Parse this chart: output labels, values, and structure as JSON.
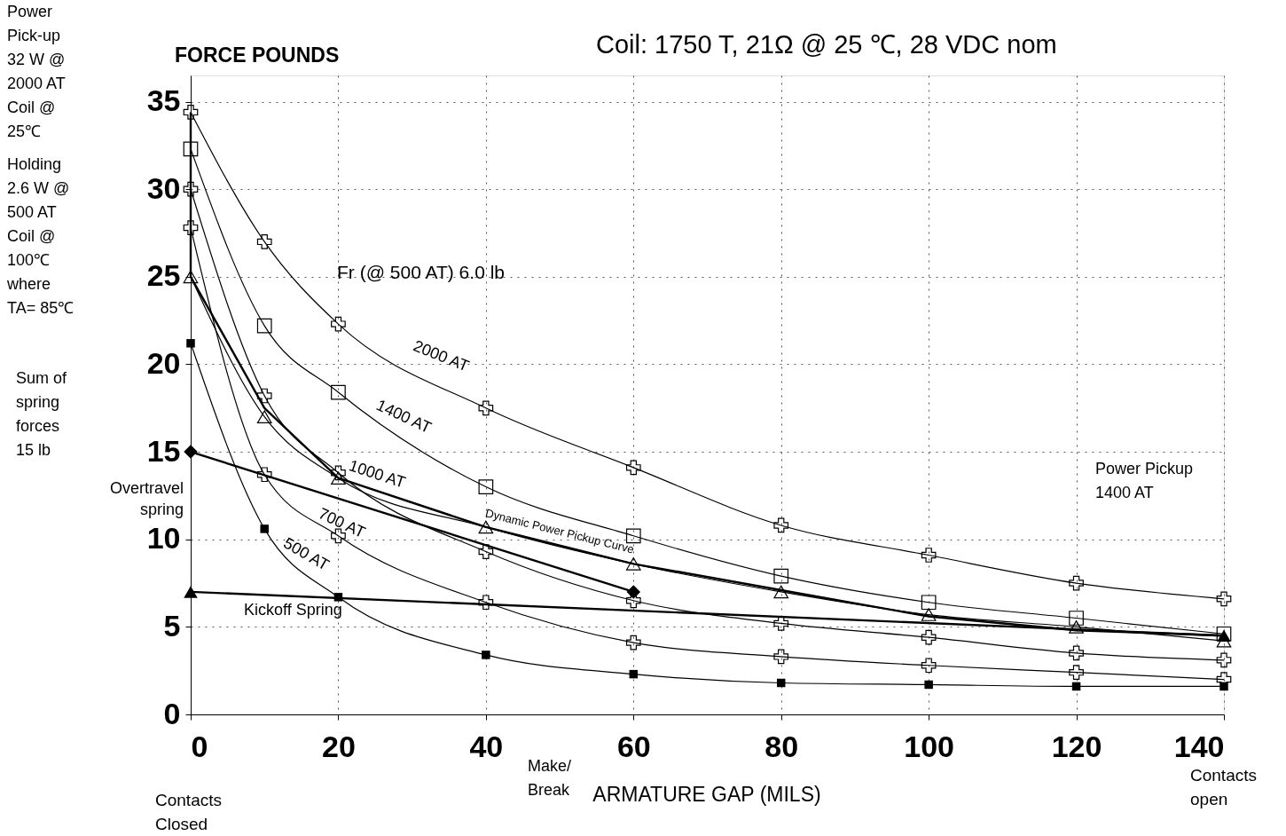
{
  "chart_data": {
    "type": "line",
    "title": "Coil:  1750   T, 21Ω  @ 25 ℃, 28 VDC nom",
    "xlabel": "ARMATURE GAP (MILS)",
    "ylabel": "FORCE POUNDS",
    "xlim": [
      0,
      140
    ],
    "ylim": [
      0,
      36.5
    ],
    "xticks": [
      0,
      20,
      40,
      60,
      80,
      100,
      120,
      140
    ],
    "yticks": [
      0,
      5,
      10,
      15,
      20,
      25,
      30,
      35
    ],
    "grid": true,
    "series": [
      {
        "name": "2000 AT",
        "color": "#000000",
        "marker": "cross",
        "x": [
          0,
          10,
          20,
          40,
          60,
          80,
          100,
          120,
          140
        ],
        "values": [
          34.4,
          27.0,
          22.3,
          17.5,
          14.1,
          10.8,
          9.1,
          7.5,
          6.6
        ]
      },
      {
        "name": "1400 AT",
        "color": "#000000",
        "marker": "square",
        "x": [
          0,
          10,
          20,
          40,
          60,
          80,
          100,
          120,
          140
        ],
        "values": [
          32.3,
          22.2,
          18.4,
          13.0,
          10.2,
          7.9,
          6.4,
          5.5,
          4.6
        ]
      },
      {
        "name": "1000 AT",
        "color": "#000000",
        "marker": "triangle",
        "x": [
          0,
          10,
          20,
          40,
          60,
          80,
          100,
          120,
          140
        ],
        "values": [
          25.0,
          17.0,
          13.5,
          10.7,
          8.6,
          7.0,
          5.7,
          5.0,
          4.2
        ]
      },
      {
        "color": "#000000",
        "marker": "cross",
        "x": [
          0,
          10,
          20,
          40,
          60,
          80,
          100,
          120,
          140
        ],
        "values": [
          30.0,
          18.2,
          13.8,
          9.3,
          6.5,
          5.2,
          4.4,
          3.5,
          3.1
        ]
      },
      {
        "name": "700 AT",
        "color": "#000000",
        "marker": "cross",
        "x": [
          0,
          10,
          20,
          40,
          60,
          80,
          100,
          120,
          140
        ],
        "values": [
          27.8,
          13.7,
          10.2,
          6.4,
          4.1,
          3.3,
          2.8,
          2.4,
          2.0
        ]
      },
      {
        "name": "500 AT",
        "color": "#000000",
        "marker": "square",
        "x": [
          0,
          10,
          20,
          40,
          60,
          80,
          100,
          120,
          140
        ],
        "values": [
          21.2,
          10.6,
          6.7,
          3.4,
          2.3,
          1.8,
          1.7,
          1.6,
          1.6
        ]
      },
      {
        "name": "Overtravel\nspring",
        "color": "#000000",
        "marker": "diamond",
        "x": [
          0,
          60
        ],
        "values": [
          15.0,
          7.0
        ]
      },
      {
        "name": "Kickoff Spring",
        "color": "#000000",
        "marker": "triangle",
        "x": [
          0,
          140
        ],
        "values": [
          7.0,
          4.5
        ]
      },
      {
        "name": "Dynamic Power Pickup Curve",
        "color": "#000000",
        "marker": "none",
        "x": [
          140,
          120,
          100,
          80,
          60,
          40,
          20,
          10,
          0,
          0,
          0
        ],
        "values": [
          4.5,
          4.8,
          5.6,
          7.1,
          8.6,
          10.7,
          13.5,
          17.5,
          25.0,
          30.0,
          34.4
        ]
      }
    ],
    "annotations": [
      "Power\nPick-up\n32 W @\n2000 AT\nCoil @\n25℃",
      "Holding\n2.6 W @\n500 AT\nCoil @\n100℃\nwhere\nTA= 85℃",
      "Sum of\nspring\nforces\n15 lb",
      "Fr (@ 500 AT)  6.0 lb",
      "Power Pickup\n1400 AT",
      "Contacts\nClosed",
      "Make/\nBreak",
      "Contacts\nopen"
    ]
  }
}
